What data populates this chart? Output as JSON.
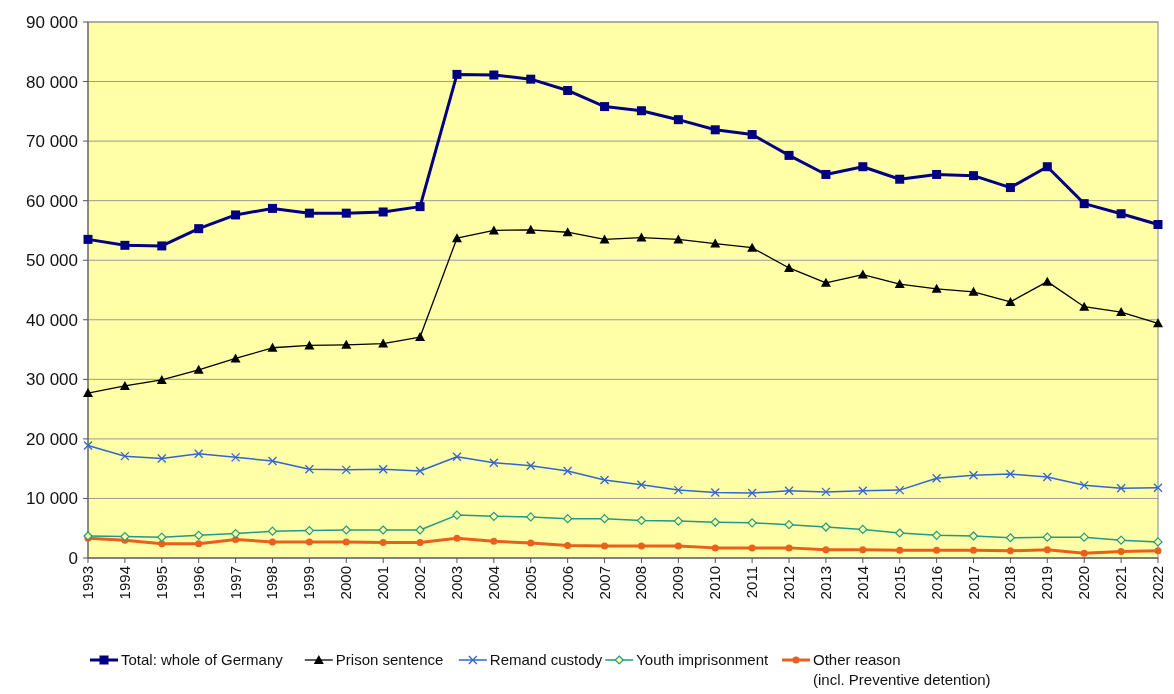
{
  "chart_data": {
    "type": "line",
    "categories": [
      "1993",
      "1994",
      "1995",
      "1996",
      "1997",
      "1998",
      "1999",
      "2000",
      "2001",
      "2002",
      "2003",
      "2004",
      "2005",
      "2006",
      "2007",
      "2008",
      "2009",
      "2010",
      "2011",
      "2012",
      "2013",
      "2014",
      "2015",
      "2016",
      "2017",
      "2018",
      "2019",
      "2020",
      "2021",
      "2022"
    ],
    "ylim": [
      0,
      90000
    ],
    "yticks": [
      {
        "value": 0,
        "label": "0"
      },
      {
        "value": 10000,
        "label": "10 000"
      },
      {
        "value": 20000,
        "label": "20 000"
      },
      {
        "value": 30000,
        "label": "30 000"
      },
      {
        "value": 40000,
        "label": "40 000"
      },
      {
        "value": 50000,
        "label": "50 000"
      },
      {
        "value": 60000,
        "label": "60 000"
      },
      {
        "value": 70000,
        "label": "70 000"
      },
      {
        "value": 80000,
        "label": "80 000"
      },
      {
        "value": 90000,
        "label": "90 000"
      }
    ],
    "grid": "y",
    "legend": "bottom",
    "series": [
      {
        "name": "Total: whole of Germany",
        "color": "#000080",
        "marker": "square",
        "values": [
          53500,
          52500,
          52400,
          55300,
          57600,
          58700,
          57900,
          57900,
          58100,
          59000,
          81200,
          81100,
          80400,
          78500,
          75800,
          75100,
          73600,
          71900,
          71100,
          67600,
          64400,
          65700,
          63600,
          64400,
          64200,
          62200,
          65700,
          59500,
          57800,
          56000
        ]
      },
      {
        "name": "Prison sentence",
        "color": "#000000",
        "marker": "triangle",
        "values": [
          27700,
          28900,
          29900,
          31600,
          33500,
          35300,
          35700,
          35800,
          36000,
          37100,
          53700,
          55000,
          55100,
          54700,
          53500,
          53800,
          53500,
          52800,
          52100,
          48700,
          46200,
          47600,
          46000,
          45200,
          44700,
          43000,
          46400,
          42200,
          41300,
          39400
        ]
      },
      {
        "name": "Remand custody",
        "color": "#3366cc",
        "marker": "cross",
        "values": [
          18900,
          17100,
          16700,
          17500,
          16900,
          16300,
          14900,
          14800,
          14900,
          14600,
          17000,
          16000,
          15500,
          14600,
          13100,
          12300,
          11400,
          11000,
          10900,
          11300,
          11100,
          11300,
          11400,
          13400,
          13900,
          14100,
          13600,
          12200,
          11700,
          11800
        ]
      },
      {
        "name": "Youth imprisonment",
        "color": "#229988",
        "marker": "diamond",
        "values": [
          3700,
          3600,
          3500,
          3800,
          4100,
          4500,
          4600,
          4700,
          4700,
          4700,
          7200,
          7000,
          6900,
          6600,
          6600,
          6300,
          6200,
          6000,
          5900,
          5600,
          5200,
          4800,
          4200,
          3800,
          3700,
          3400,
          3500,
          3500,
          3000,
          2700
        ]
      },
      {
        "name": "Other reason\n(incl. Preventive detention)",
        "color": "#e8601c",
        "marker": "circle",
        "values": [
          3300,
          3000,
          2400,
          2400,
          3100,
          2700,
          2700,
          2700,
          2600,
          2600,
          3300,
          2800,
          2500,
          2100,
          2000,
          2000,
          2000,
          1700,
          1700,
          1700,
          1400,
          1400,
          1300,
          1300,
          1300,
          1200,
          1400,
          800,
          1100,
          1200
        ]
      }
    ]
  }
}
